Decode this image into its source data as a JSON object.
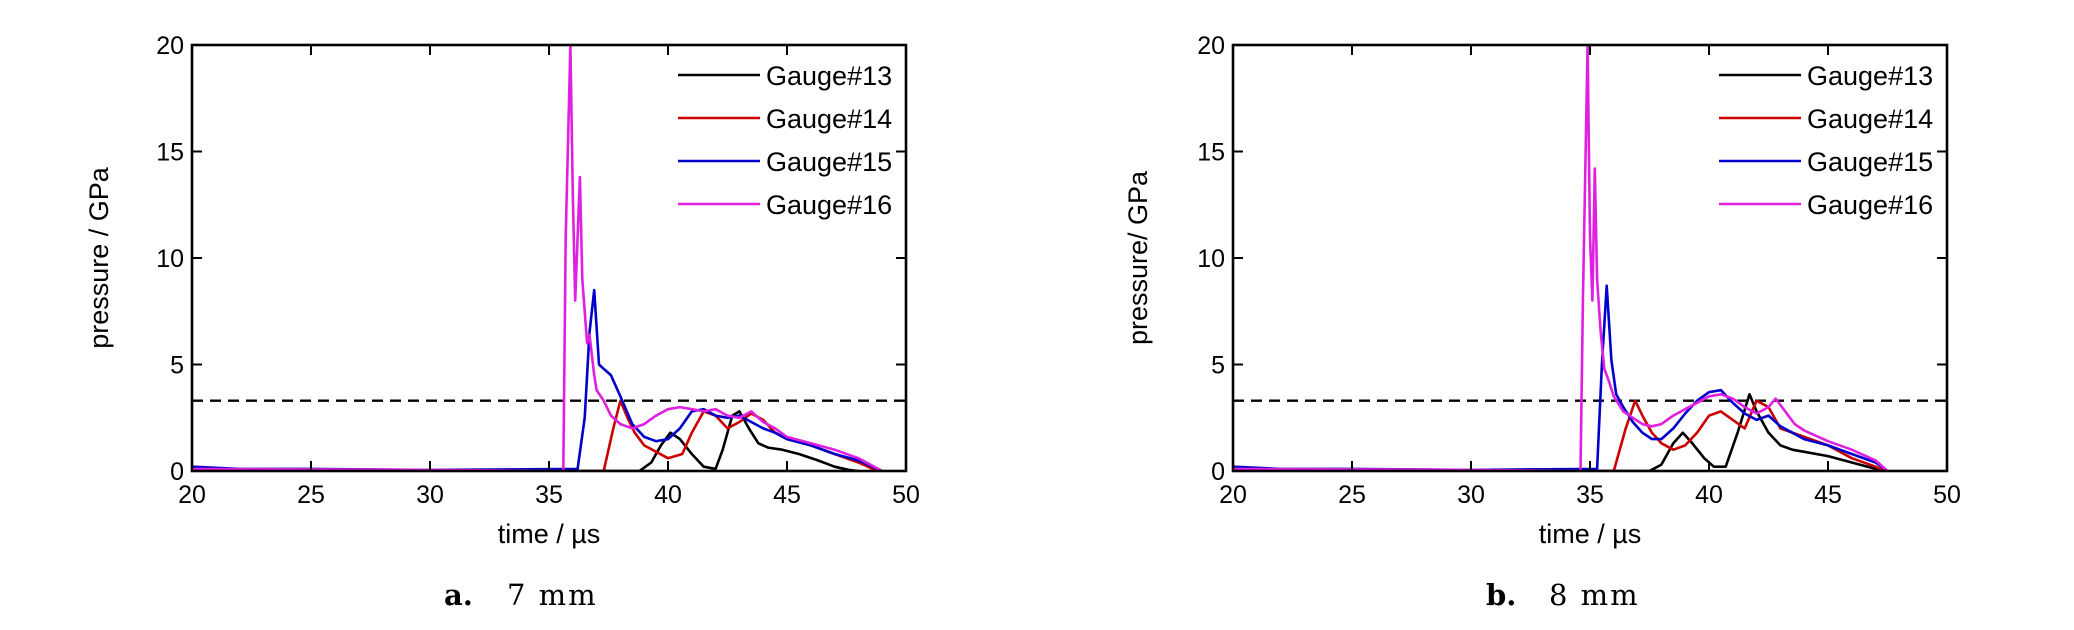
{
  "chart_data": [
    {
      "type": "line",
      "caption_letter": "a.",
      "caption_text": "7 mm",
      "xlabel": "time / µs",
      "ylabel": "pressure / GPa",
      "xlim": [
        20,
        50
      ],
      "ylim": [
        0,
        20
      ],
      "xticks": [
        20,
        25,
        30,
        35,
        40,
        45,
        50
      ],
      "yticks": [
        0,
        5,
        10,
        15,
        20
      ],
      "legend_position": "top-right",
      "reference_line": {
        "y": 3.3,
        "style": "dashed",
        "color": "#000000"
      },
      "series": [
        {
          "name": "Gauge#13",
          "color": "#000000",
          "x": [
            20,
            38.8,
            39.3,
            39.7,
            40.1,
            40.5,
            41.0,
            41.5,
            42.0,
            42.3,
            42.7,
            43.0,
            43.4,
            43.8,
            44.2,
            44.8,
            45.5,
            46.3,
            47.0,
            47.6,
            48.0
          ],
          "y": [
            0,
            0,
            0.4,
            1.2,
            1.8,
            1.5,
            0.8,
            0.2,
            0.1,
            1.0,
            2.6,
            2.8,
            2.0,
            1.3,
            1.1,
            1.0,
            0.8,
            0.5,
            0.2,
            0.05,
            0
          ]
        },
        {
          "name": "Gauge#14",
          "color": "#cc0000",
          "x": [
            20,
            37.3,
            37.7,
            38.0,
            38.3,
            38.6,
            39.0,
            39.5,
            40.0,
            40.6,
            41.0,
            41.5,
            42.0,
            42.5,
            43.0,
            43.5,
            44.0,
            44.5,
            45.0,
            46.0,
            47.0,
            48.0,
            48.8
          ],
          "y": [
            0,
            0,
            2.0,
            3.3,
            2.5,
            1.8,
            1.2,
            0.9,
            0.6,
            0.8,
            1.8,
            2.8,
            2.6,
            2.0,
            2.3,
            2.7,
            2.4,
            1.8,
            1.5,
            1.2,
            0.8,
            0.4,
            0
          ]
        },
        {
          "name": "Gauge#15",
          "color": "#0000cc",
          "x": [
            20,
            22,
            25,
            30,
            36.2,
            36.5,
            36.7,
            36.9,
            37.1,
            37.3,
            37.6,
            38.0,
            38.5,
            39.0,
            39.5,
            40.0,
            40.5,
            41.0,
            41.5,
            42.0,
            42.5,
            43.0,
            43.5,
            44.0,
            44.5,
            45.0,
            46.0,
            47.0,
            48.0,
            49.0
          ],
          "y": [
            0.2,
            0.1,
            0.1,
            0.05,
            0.1,
            2.5,
            6.5,
            8.5,
            5.0,
            4.8,
            4.5,
            3.5,
            2.2,
            1.6,
            1.4,
            1.5,
            2.0,
            2.8,
            2.9,
            2.6,
            2.5,
            2.6,
            2.3,
            2.0,
            1.8,
            1.5,
            1.2,
            0.8,
            0.5,
            0
          ]
        },
        {
          "name": "Gauge#16",
          "color": "#e020e0",
          "x": [
            20,
            30,
            35.6,
            35.7,
            35.9,
            36.0,
            36.1,
            36.3,
            36.4,
            36.6,
            36.7,
            36.9,
            37.0,
            37.3,
            37.6,
            38.0,
            38.5,
            39.0,
            39.5,
            40.0,
            40.5,
            41.0,
            41.5,
            42.0,
            42.5,
            43.0,
            43.5,
            44.0,
            44.5,
            45.0,
            46.0,
            47.0,
            48.0,
            49.0
          ],
          "y": [
            0.1,
            0.05,
            0,
            11.0,
            20.0,
            13.0,
            8.0,
            13.8,
            9.0,
            6.0,
            6.4,
            4.5,
            3.8,
            3.3,
            2.6,
            2.2,
            2.0,
            2.2,
            2.6,
            2.9,
            3.0,
            2.9,
            2.8,
            2.9,
            2.6,
            2.5,
            2.8,
            2.3,
            2.0,
            1.6,
            1.3,
            1.0,
            0.6,
            0
          ]
        }
      ]
    },
    {
      "type": "line",
      "caption_letter": "b.",
      "caption_text": "8 mm",
      "xlabel": "time / µs",
      "ylabel": "pressure/ GPa",
      "xlim": [
        20,
        50
      ],
      "ylim": [
        0,
        20
      ],
      "xticks": [
        20,
        25,
        30,
        35,
        40,
        45,
        50
      ],
      "yticks": [
        0,
        5,
        10,
        15,
        20
      ],
      "legend_position": "top-right",
      "reference_line": {
        "y": 3.3,
        "style": "dashed",
        "color": "#000000"
      },
      "series": [
        {
          "name": "Gauge#13",
          "color": "#000000",
          "x": [
            20,
            37.5,
            38.0,
            38.5,
            38.9,
            39.3,
            39.8,
            40.2,
            40.7,
            41.2,
            41.7,
            42.0,
            42.5,
            43.0,
            43.5,
            44.0,
            45.0,
            46.0,
            47.0,
            47.5
          ],
          "y": [
            0,
            0,
            0.3,
            1.3,
            1.8,
            1.3,
            0.6,
            0.2,
            0.2,
            1.8,
            3.6,
            2.8,
            1.8,
            1.2,
            1.0,
            0.9,
            0.7,
            0.4,
            0.1,
            0
          ]
        },
        {
          "name": "Gauge#14",
          "color": "#cc0000",
          "x": [
            20,
            36.0,
            36.5,
            36.9,
            37.2,
            37.6,
            38.0,
            38.5,
            39.0,
            39.5,
            40.0,
            40.5,
            41.0,
            41.5,
            42.0,
            42.5,
            43.0,
            44.0,
            45.0,
            46.0,
            47.0,
            47.4
          ],
          "y": [
            0,
            0,
            2.0,
            3.3,
            2.6,
            1.8,
            1.3,
            1.0,
            1.2,
            1.8,
            2.6,
            2.8,
            2.4,
            2.0,
            3.3,
            3.0,
            2.0,
            1.6,
            1.2,
            0.6,
            0.2,
            0
          ]
        },
        {
          "name": "Gauge#15",
          "color": "#0000cc",
          "x": [
            20,
            22,
            25,
            30,
            35.3,
            35.5,
            35.7,
            35.9,
            36.1,
            36.4,
            36.8,
            37.2,
            37.6,
            38.0,
            38.5,
            39.0,
            39.5,
            40.0,
            40.5,
            41.0,
            41.5,
            42.0,
            42.5,
            43.0,
            43.5,
            44.0,
            45.0,
            46.0,
            47.0,
            47.5
          ],
          "y": [
            0.2,
            0.1,
            0.1,
            0.05,
            0.1,
            5.0,
            8.7,
            5.2,
            3.6,
            3.0,
            2.3,
            1.8,
            1.5,
            1.5,
            2.0,
            2.7,
            3.3,
            3.7,
            3.8,
            3.2,
            2.7,
            2.4,
            2.6,
            2.1,
            1.8,
            1.5,
            1.2,
            0.8,
            0.4,
            0
          ]
        },
        {
          "name": "Gauge#16",
          "color": "#e020e0",
          "x": [
            20,
            30,
            34.6,
            34.7,
            34.9,
            35.0,
            35.1,
            35.2,
            35.3,
            35.45,
            35.6,
            35.8,
            36.0,
            36.4,
            36.8,
            37.2,
            37.6,
            38.0,
            38.5,
            39.0,
            39.5,
            40.0,
            40.5,
            41.0,
            41.5,
            42.0,
            42.5,
            42.8,
            43.2,
            43.6,
            44.0,
            45.0,
            46.0,
            47.0,
            47.5
          ],
          "y": [
            0.1,
            0.05,
            0,
            8.0,
            20.0,
            11.0,
            8.0,
            14.2,
            9.0,
            6.5,
            4.8,
            4.2,
            3.5,
            2.8,
            2.5,
            2.2,
            2.1,
            2.2,
            2.6,
            2.9,
            3.2,
            3.5,
            3.6,
            3.4,
            3.0,
            2.7,
            3.0,
            3.4,
            2.8,
            2.2,
            1.9,
            1.4,
            1.0,
            0.5,
            0
          ]
        }
      ]
    }
  ]
}
